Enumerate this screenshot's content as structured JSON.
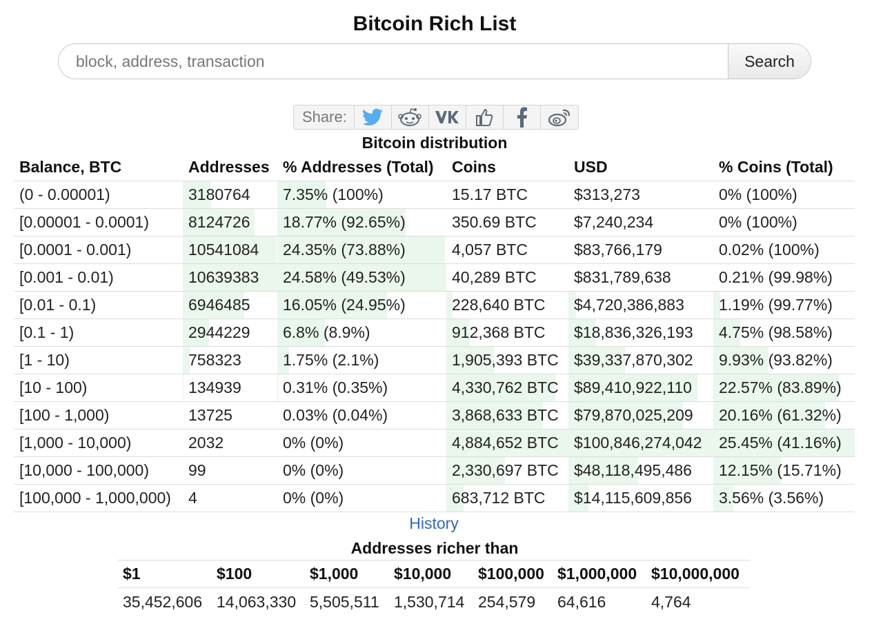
{
  "page_title": "Bitcoin Rich List",
  "search": {
    "placeholder": "block, address, transaction",
    "button_label": "Search"
  },
  "share": {
    "label": "Share:",
    "buttons": [
      {
        "icon": "twitter-icon",
        "color": "#55acee"
      },
      {
        "icon": "reddit-icon",
        "color": "#5b6a79"
      },
      {
        "icon": "vk-icon",
        "color": "#5b6a79"
      },
      {
        "icon": "like-icon",
        "color": "#5b6a79"
      },
      {
        "icon": "facebook-icon",
        "color": "#5b6a79"
      },
      {
        "icon": "weibo-icon",
        "color": "#5b6a79"
      }
    ]
  },
  "distribution": {
    "title": "Bitcoin distribution",
    "headers": [
      "Balance, BTC",
      "Addresses",
      "% Addresses (Total)",
      "Coins",
      "USD",
      "% Coins (Total)"
    ],
    "rows": [
      {
        "balance": "(0 - 0.00001)",
        "addresses": "3180764",
        "pct_addresses": "7.35% (100%)",
        "coins": "15.17 BTC",
        "usd": "$313,273",
        "pct_coins": "0% (100%)",
        "addr_share": 0.3,
        "pct_addr_share": 0.29,
        "coins_share": 0,
        "usd_share": 0,
        "pct_coins_share": 0
      },
      {
        "balance": "[0.00001 - 0.0001)",
        "addresses": "8124726",
        "pct_addresses": "18.77% (92.65%)",
        "coins": "350.69 BTC",
        "usd": "$7,240,234",
        "pct_coins": "0% (100%)",
        "addr_share": 0.76,
        "pct_addr_share": 0.76,
        "coins_share": 0,
        "usd_share": 0,
        "pct_coins_share": 0
      },
      {
        "balance": "[0.0001 - 0.001)",
        "addresses": "10541084",
        "pct_addresses": "24.35% (73.88%)",
        "coins": "4,057 BTC",
        "usd": "$83,766,179",
        "pct_coins": "0.02% (100%)",
        "addr_share": 0.99,
        "pct_addr_share": 0.99,
        "coins_share": 0,
        "usd_share": 0,
        "pct_coins_share": 0
      },
      {
        "balance": "[0.001 - 0.01)",
        "addresses": "10639383",
        "pct_addresses": "24.58% (49.53%)",
        "coins": "40,289 BTC",
        "usd": "$831,789,638",
        "pct_coins": "0.21% (99.98%)",
        "addr_share": 1.0,
        "pct_addr_share": 1.0,
        "coins_share": 0,
        "usd_share": 0,
        "pct_coins_share": 0
      },
      {
        "balance": "[0.01 - 0.1)",
        "addresses": "6946485",
        "pct_addresses": "16.05% (24.95%)",
        "coins": "228,640 BTC",
        "usd": "$4,720,386,883",
        "pct_coins": "1.19% (99.77%)",
        "addr_share": 0.65,
        "pct_addr_share": 0.65,
        "coins_share": 0.05,
        "usd_share": 0.05,
        "pct_coins_share": 0.05
      },
      {
        "balance": "[0.1 - 1)",
        "addresses": "2944229",
        "pct_addresses": "6.8% (8.9%)",
        "coins": "912,368 BTC",
        "usd": "$18,836,326,193",
        "pct_coins": "4.75% (98.58%)",
        "addr_share": 0.28,
        "pct_addr_share": 0.28,
        "coins_share": 0.19,
        "usd_share": 0.19,
        "pct_coins_share": 0.19
      },
      {
        "balance": "[1 - 10)",
        "addresses": "758323",
        "pct_addresses": "1.75% (2.1%)",
        "coins": "1,905,393 BTC",
        "usd": "$39,337,870,302",
        "pct_coins": "9.93% (93.82%)",
        "addr_share": 0.07,
        "pct_addr_share": 0.07,
        "coins_share": 0.39,
        "usd_share": 0.39,
        "pct_coins_share": 0.39
      },
      {
        "balance": "[10 - 100)",
        "addresses": "134939",
        "pct_addresses": "0.31% (0.35%)",
        "coins": "4,330,762 BTC",
        "usd": "$89,410,922,110",
        "pct_coins": "22.57% (83.89%)",
        "addr_share": 0.01,
        "pct_addr_share": 0.01,
        "coins_share": 0.89,
        "usd_share": 0.89,
        "pct_coins_share": 0.89
      },
      {
        "balance": "[100 - 1,000)",
        "addresses": "13725",
        "pct_addresses": "0.03% (0.04%)",
        "coins": "3,868,633 BTC",
        "usd": "$79,870,025,209",
        "pct_coins": "20.16% (61.32%)",
        "addr_share": 0,
        "pct_addr_share": 0,
        "coins_share": 0.79,
        "usd_share": 0.79,
        "pct_coins_share": 0.79
      },
      {
        "balance": "[1,000 - 10,000)",
        "addresses": "2032",
        "pct_addresses": "0% (0%)",
        "coins": "4,884,652 BTC",
        "usd": "$100,846,274,042",
        "pct_coins": "25.45% (41.16%)",
        "addr_share": 0,
        "pct_addr_share": 0,
        "coins_share": 1.0,
        "usd_share": 1.0,
        "pct_coins_share": 1.0
      },
      {
        "balance": "[10,000 - 100,000)",
        "addresses": "99",
        "pct_addresses": "0% (0%)",
        "coins": "2,330,697 BTC",
        "usd": "$48,118,495,486",
        "pct_coins": "12.15% (15.71%)",
        "addr_share": 0,
        "pct_addr_share": 0,
        "coins_share": 0.48,
        "usd_share": 0.48,
        "pct_coins_share": 0.48
      },
      {
        "balance": "[100,000 - 1,000,000)",
        "addresses": "4",
        "pct_addresses": "0% (0%)",
        "coins": "683,712 BTC",
        "usd": "$14,115,609,856",
        "pct_coins": "3.56% (3.56%)",
        "addr_share": 0,
        "pct_addr_share": 0,
        "coins_share": 0.14,
        "usd_share": 0.14,
        "pct_coins_share": 0.14
      }
    ]
  },
  "history_link": "History",
  "richer": {
    "title": "Addresses richer than",
    "headers": [
      "$1",
      "$100",
      "$1,000",
      "$10,000",
      "$100,000",
      "$1,000,000",
      "$10,000,000"
    ],
    "values": [
      "35,452,606",
      "14,063,330",
      "5,505,511",
      "1,530,714",
      "254,579",
      "64,616",
      "4,764"
    ]
  },
  "colors": {
    "bar_fill": "#e9f7ec",
    "link": "#3366bb"
  }
}
